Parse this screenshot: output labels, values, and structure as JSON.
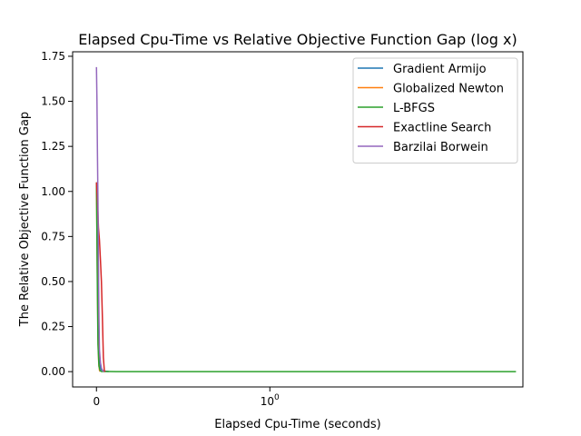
{
  "chart_data": {
    "type": "line",
    "title": "Elapsed Cpu-Time vs Relative Objective Function Gap (log x)",
    "xlabel": "Elapsed Cpu-Time (seconds)",
    "ylabel": "The Relative Objective Function Gap",
    "xscale": "symlog",
    "xlim": [
      -0.1,
      4.5
    ],
    "ylim": [
      -0.085,
      1.775
    ],
    "x_ticks": [
      {
        "value": 0,
        "label": "0"
      },
      {
        "value": 1,
        "label": "10",
        "exp": "0"
      }
    ],
    "y_ticks": [
      {
        "value": 0.0,
        "label": "0.00"
      },
      {
        "value": 0.25,
        "label": "0.25"
      },
      {
        "value": 0.5,
        "label": "0.50"
      },
      {
        "value": 0.75,
        "label": "0.75"
      },
      {
        "value": 1.0,
        "label": "1.00"
      },
      {
        "value": 1.25,
        "label": "1.25"
      },
      {
        "value": 1.5,
        "label": "1.50"
      },
      {
        "value": 1.75,
        "label": "1.75"
      }
    ],
    "grid": false,
    "legend": "top-right",
    "series": [
      {
        "name": "Gradient Armijo",
        "color": "#1f77b4",
        "x": [
          0.0,
          0.002,
          0.004,
          0.006,
          0.008,
          0.012,
          0.02,
          0.03,
          0.05
        ],
        "y": [
          1.05,
          0.95,
          0.7,
          0.4,
          0.15,
          0.04,
          0.01,
          0.003,
          0.001
        ]
      },
      {
        "name": "Globalized Newton",
        "color": "#ff7f0e",
        "x": [
          0.0,
          0.003,
          0.006,
          0.009,
          0.012,
          0.015
        ],
        "y": [
          1.05,
          0.62,
          0.22,
          0.05,
          0.008,
          0.0
        ]
      },
      {
        "name": "L-BFGS",
        "color": "#2ca02c",
        "x": [
          0.0,
          0.003,
          0.006,
          0.01,
          0.015,
          0.02,
          0.05,
          0.1,
          0.5,
          1.0,
          2.0,
          3.0,
          4.0,
          4.35
        ],
        "y": [
          1.05,
          0.55,
          0.15,
          0.03,
          0.005,
          0.001,
          0.0005,
          0.0003,
          0.0002,
          0.0001,
          0.0001,
          0.0001,
          0.0,
          0.0
        ]
      },
      {
        "name": "Exactline Search",
        "color": "#d62728",
        "x": [
          0.0,
          0.004,
          0.008,
          0.012,
          0.016,
          0.02,
          0.024,
          0.028,
          0.032,
          0.036
        ],
        "y": [
          1.05,
          0.95,
          0.8,
          0.73,
          0.62,
          0.5,
          0.3,
          0.08,
          0.005,
          0.0
        ]
      },
      {
        "name": "Barzilai Borwein",
        "color": "#9467bd",
        "x": [
          0.0,
          0.002,
          0.004,
          0.006,
          0.008,
          0.01,
          0.012,
          0.016,
          0.02,
          0.025,
          0.03
        ],
        "y": [
          1.69,
          1.5,
          1.2,
          0.95,
          0.6,
          0.3,
          0.12,
          0.05,
          0.02,
          0.005,
          0.0
        ]
      }
    ]
  }
}
